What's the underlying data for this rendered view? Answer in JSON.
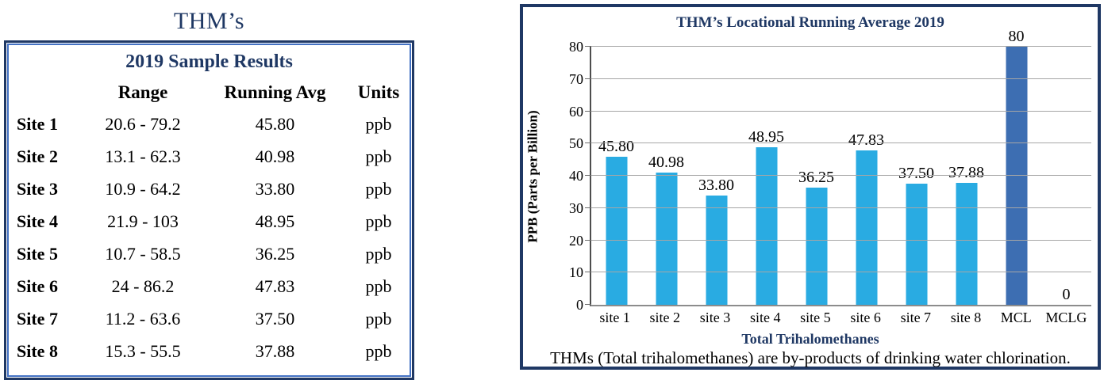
{
  "table": {
    "title": "THM’s",
    "subtitle": "2019 Sample Results",
    "columns": [
      "Range",
      "Running Avg",
      "Units"
    ],
    "rows": [
      {
        "site": "Site 1",
        "range": "20.6 - 79.2",
        "running_avg": "45.80",
        "units": "ppb"
      },
      {
        "site": "Site 2",
        "range": "13.1 - 62.3",
        "running_avg": "40.98",
        "units": "ppb"
      },
      {
        "site": "Site 3",
        "range": "10.9 - 64.2",
        "running_avg": "33.80",
        "units": "ppb"
      },
      {
        "site": "Site 4",
        "range": "21.9 - 103",
        "running_avg": "48.95",
        "units": "ppb"
      },
      {
        "site": "Site 5",
        "range": "10.7 - 58.5",
        "running_avg": "36.25",
        "units": "ppb"
      },
      {
        "site": "Site 6",
        "range": "24 - 86.2",
        "running_avg": "47.83",
        "units": "ppb"
      },
      {
        "site": "Site 7",
        "range": "11.2 - 63.6",
        "running_avg": "37.50",
        "units": "ppb"
      },
      {
        "site": "Site 8",
        "range": "15.3 - 55.5",
        "running_avg": "37.88",
        "units": "ppb"
      }
    ]
  },
  "chart_data": {
    "type": "bar",
    "title": "THM’s Locational Running Average 2019",
    "categories": [
      "site 1",
      "site 2",
      "site 3",
      "site 4",
      "site 5",
      "site 6",
      "site 7",
      "site 8",
      "MCL",
      "MCLG"
    ],
    "values": [
      45.8,
      40.98,
      33.8,
      48.95,
      36.25,
      47.83,
      37.5,
      37.88,
      80,
      0
    ],
    "data_labels": [
      "45.80",
      "40.98",
      "33.80",
      "48.95",
      "36.25",
      "47.83",
      "37.50",
      "37.88",
      "80",
      "0"
    ],
    "xlabel": "Total Trihalomethanes",
    "ylabel": "PPB (Parts per Billion)",
    "caption": "THMs (Total trihalomethanes) are by-products of drinking water chlorination.",
    "ylim": [
      0,
      80
    ],
    "y_ticks": [
      0,
      10,
      20,
      30,
      40,
      50,
      60,
      70,
      80
    ],
    "grid": true,
    "legend": false,
    "colors": {
      "bar": "#29abe2",
      "mcl_bar": "#3d6eb2",
      "title_text": "#1f3864",
      "gridline": "#a6a6a6"
    },
    "special_bars": {
      "MCL": "mcl_bar"
    }
  }
}
